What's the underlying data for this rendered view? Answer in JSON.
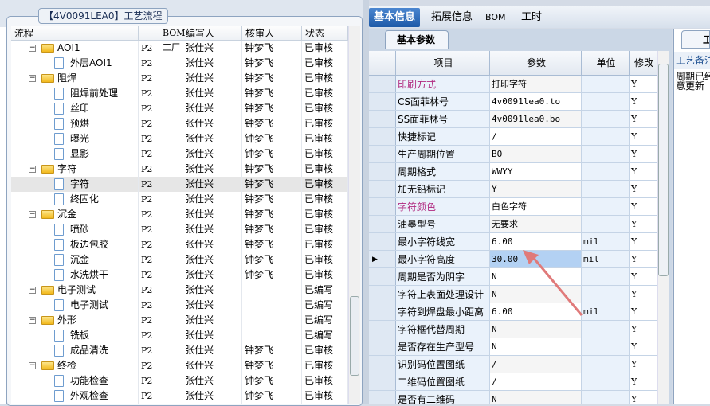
{
  "left": {
    "group_title": "【4V0091LEA0】工艺流程",
    "columns": [
      "流程",
      "BOM工厂",
      "编写人",
      "核审人",
      "状态"
    ],
    "rows": [
      {
        "level": 0,
        "type": "folder",
        "name": "AOI1",
        "factory": "P2",
        "writer": "张仕兴",
        "reviewer": "钟梦飞",
        "status": "已审核"
      },
      {
        "level": 1,
        "type": "doc",
        "name": "外层AOI1",
        "factory": "P2",
        "writer": "张仕兴",
        "reviewer": "钟梦飞",
        "status": "已审核"
      },
      {
        "level": 0,
        "type": "folder",
        "name": "阻焊",
        "factory": "P2",
        "writer": "张仕兴",
        "reviewer": "钟梦飞",
        "status": "已审核"
      },
      {
        "level": 1,
        "type": "doc",
        "name": "阻焊前处理",
        "factory": "P2",
        "writer": "张仕兴",
        "reviewer": "钟梦飞",
        "status": "已审核"
      },
      {
        "level": 1,
        "type": "doc",
        "name": "丝印",
        "factory": "P2",
        "writer": "张仕兴",
        "reviewer": "钟梦飞",
        "status": "已审核"
      },
      {
        "level": 1,
        "type": "doc",
        "name": "预烘",
        "factory": "P2",
        "writer": "张仕兴",
        "reviewer": "钟梦飞",
        "status": "已审核"
      },
      {
        "level": 1,
        "type": "doc",
        "name": "曝光",
        "factory": "P2",
        "writer": "张仕兴",
        "reviewer": "钟梦飞",
        "status": "已审核"
      },
      {
        "level": 1,
        "type": "doc",
        "name": "显影",
        "factory": "P2",
        "writer": "张仕兴",
        "reviewer": "钟梦飞",
        "status": "已审核"
      },
      {
        "level": 0,
        "type": "folder",
        "name": "字符",
        "factory": "P2",
        "writer": "张仕兴",
        "reviewer": "钟梦飞",
        "status": "已审核"
      },
      {
        "level": 1,
        "type": "doc",
        "name": "字符",
        "factory": "P2",
        "writer": "张仕兴",
        "reviewer": "钟梦飞",
        "status": "已审核",
        "selected": true
      },
      {
        "level": 1,
        "type": "doc",
        "name": "终固化",
        "factory": "P2",
        "writer": "张仕兴",
        "reviewer": "钟梦飞",
        "status": "已审核"
      },
      {
        "level": 0,
        "type": "folder",
        "name": "沉金",
        "factory": "P2",
        "writer": "张仕兴",
        "reviewer": "钟梦飞",
        "status": "已审核"
      },
      {
        "level": 1,
        "type": "doc",
        "name": "喷砂",
        "factory": "P2",
        "writer": "张仕兴",
        "reviewer": "钟梦飞",
        "status": "已审核"
      },
      {
        "level": 1,
        "type": "doc",
        "name": "板边包胶",
        "factory": "P2",
        "writer": "张仕兴",
        "reviewer": "钟梦飞",
        "status": "已审核"
      },
      {
        "level": 1,
        "type": "doc",
        "name": "沉金",
        "factory": "P2",
        "writer": "张仕兴",
        "reviewer": "钟梦飞",
        "status": "已审核"
      },
      {
        "level": 1,
        "type": "doc",
        "name": "水洗烘干",
        "factory": "P2",
        "writer": "张仕兴",
        "reviewer": "钟梦飞",
        "status": "已审核"
      },
      {
        "level": 0,
        "type": "folder",
        "name": "电子测试",
        "factory": "P2",
        "writer": "张仕兴",
        "reviewer": "",
        "status": "已编写"
      },
      {
        "level": 1,
        "type": "doc",
        "name": "电子测试",
        "factory": "P2",
        "writer": "张仕兴",
        "reviewer": "",
        "status": "已编写"
      },
      {
        "level": 0,
        "type": "folder",
        "name": "外形",
        "factory": "P2",
        "writer": "张仕兴",
        "reviewer": "",
        "status": "已编写"
      },
      {
        "level": 1,
        "type": "doc",
        "name": "铣板",
        "factory": "P2",
        "writer": "张仕兴",
        "reviewer": "",
        "status": "已编写"
      },
      {
        "level": 1,
        "type": "doc",
        "name": "成品清洗",
        "factory": "P2",
        "writer": "张仕兴",
        "reviewer": "钟梦飞",
        "status": "已审核"
      },
      {
        "level": 0,
        "type": "folder",
        "name": "终检",
        "factory": "P2",
        "writer": "张仕兴",
        "reviewer": "钟梦飞",
        "status": "已审核"
      },
      {
        "level": 1,
        "type": "doc",
        "name": "功能检查",
        "factory": "P2",
        "writer": "张仕兴",
        "reviewer": "钟梦飞",
        "status": "已审核"
      },
      {
        "level": 1,
        "type": "doc",
        "name": "外观检查",
        "factory": "P2",
        "writer": "张仕兴",
        "reviewer": "钟梦飞",
        "status": "已审核"
      }
    ]
  },
  "tabs": [
    {
      "label": "基本信息",
      "active": true
    },
    {
      "label": "拓展信息"
    },
    {
      "label": "BOM"
    },
    {
      "label": "工时"
    }
  ],
  "subtab": "基本参数",
  "grid": {
    "columns": [
      "项目",
      "参数",
      "单位",
      "修改"
    ],
    "rows": [
      {
        "item": "印刷方式",
        "value": "打印字符",
        "unit": "",
        "mod": "Y",
        "highlight": true
      },
      {
        "item": "CS面菲林号",
        "value": "4v0091lea0.to",
        "unit": "",
        "mod": "Y"
      },
      {
        "item": "SS面菲林号",
        "value": "4v0091lea0.bo",
        "unit": "",
        "mod": "Y"
      },
      {
        "item": "快捷标记",
        "value": "/",
        "unit": "",
        "mod": "Y"
      },
      {
        "item": "生产周期位置",
        "value": "BO",
        "unit": "",
        "mod": "Y"
      },
      {
        "item": "周期格式",
        "value": "WWYY",
        "unit": "",
        "mod": "Y"
      },
      {
        "item": "加无铅标记",
        "value": "Y",
        "unit": "",
        "mod": "Y"
      },
      {
        "item": "字符颜色",
        "value": "白色字符",
        "unit": "",
        "mod": "Y",
        "highlight": true
      },
      {
        "item": "油墨型号",
        "value": "无要求",
        "unit": "",
        "mod": "Y"
      },
      {
        "item": "最小字符线宽",
        "value": "6.00",
        "unit": "mil",
        "mod": "Y"
      },
      {
        "item": "最小字符高度",
        "value": "30.00",
        "unit": "mil",
        "mod": "Y",
        "current": true
      },
      {
        "item": "周期是否为阴字",
        "value": "N",
        "unit": "",
        "mod": "Y"
      },
      {
        "item": "字符上表面处理设计",
        "value": "N",
        "unit": "",
        "mod": "Y"
      },
      {
        "item": "字符到焊盘最小距离",
        "value": "6.00",
        "unit": "mil",
        "mod": "Y"
      },
      {
        "item": "字符框代替周期",
        "value": "N",
        "unit": "",
        "mod": "Y"
      },
      {
        "item": "是否存在生产型号",
        "value": "N",
        "unit": "",
        "mod": "Y"
      },
      {
        "item": "识别码位置图纸",
        "value": "/",
        "unit": "",
        "mod": "Y"
      },
      {
        "item": "二维码位置图纸",
        "value": "/",
        "unit": "",
        "mod": "Y"
      },
      {
        "item": "是否有二维码",
        "value": "N",
        "unit": "",
        "mod": "Y"
      }
    ]
  },
  "right_panel": {
    "tab": "工",
    "header": "工艺备注",
    "note": "周期已经\n意更新"
  },
  "colors": {
    "accent": "#1d5aa8",
    "highlight_text": "#b0287f",
    "annotation_arrow": "#e07a7a",
    "selected_cell": "#b3d1f3"
  }
}
